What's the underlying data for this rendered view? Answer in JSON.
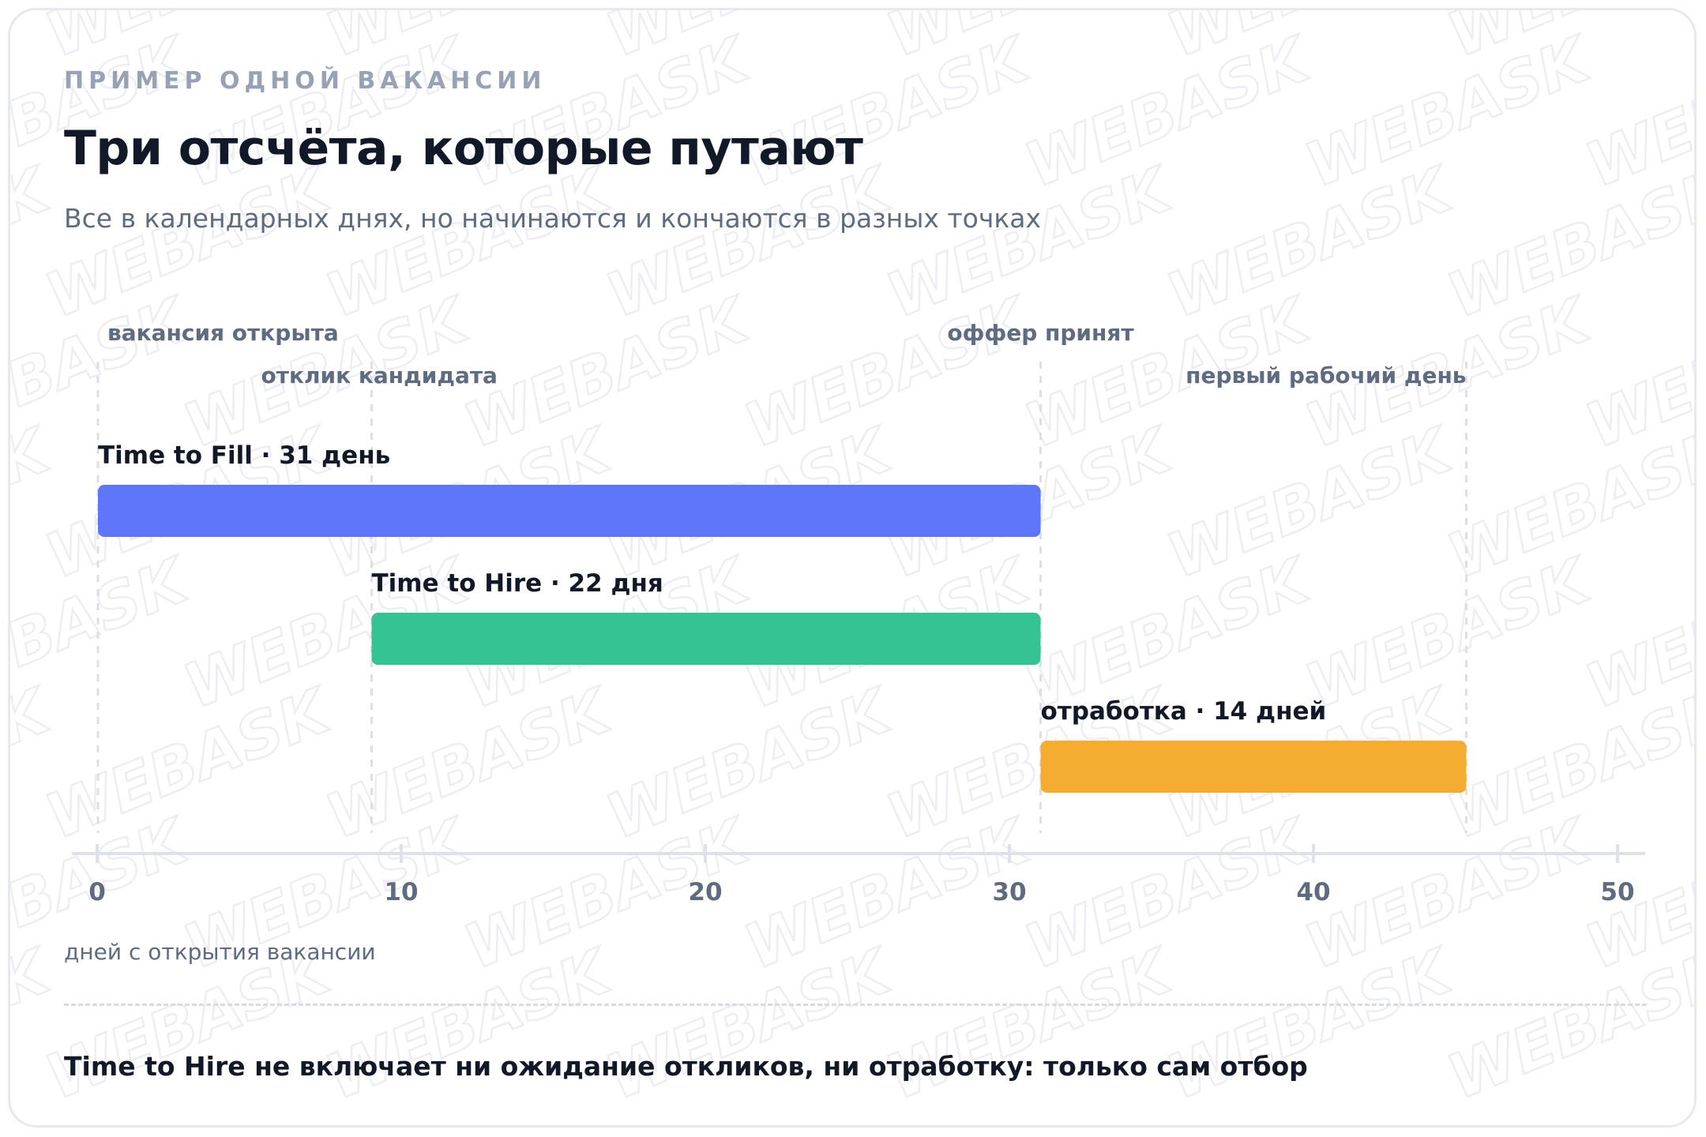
{
  "eyebrow": "ПРИМЕР ОДНОЙ ВАКАНСИИ",
  "footnote": "Time to Hire не включает ни ожидание откликов, ни отработку: только сам отбор",
  "watermark_text": "WEBASK",
  "chart_data": {
    "type": "bar",
    "orientation": "horizontal-range",
    "title": "Три отсчёта, которые путают",
    "subtitle": "Все в календарных днях, но начинаются и кончаются в разных точках",
    "xlabel": "дней с открытия вакансии",
    "xlim": [
      0,
      50
    ],
    "xticks": [
      0,
      10,
      20,
      30,
      40,
      50
    ],
    "grid": false,
    "milestones": [
      {
        "label": "вакансия открыта",
        "day": 0
      },
      {
        "label": "отклик кандидата",
        "day": 9
      },
      {
        "label": "оффер принят",
        "day": 31
      },
      {
        "label": "первый рабочий день",
        "day": 45
      }
    ],
    "series": [
      {
        "name": "Time to Fill",
        "label": "Time to Fill · 31 день",
        "start": 0,
        "end": 31,
        "value": 31,
        "color": "#5e76f9"
      },
      {
        "name": "Time to Hire",
        "label": "Time to Hire · 22 дня",
        "start": 9,
        "end": 31,
        "value": 22,
        "color": "#36c394"
      },
      {
        "name": "отработка",
        "label": "отработка · 14 дней",
        "start": 31,
        "end": 45,
        "value": 14,
        "color": "#f4ac31"
      }
    ]
  }
}
